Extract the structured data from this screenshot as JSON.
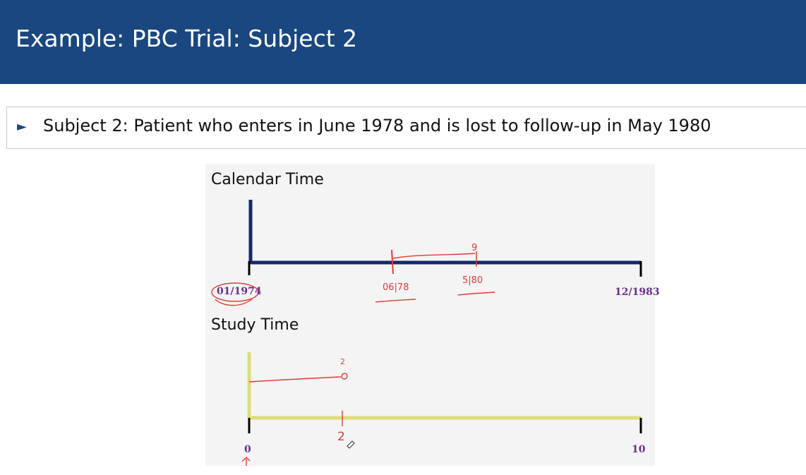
{
  "slide": {
    "title": "Example: PBC Trial: Subject 2",
    "bullet": "Subject 2: Patient who enters in June 1978 and is lost to follow-up in May 1980"
  },
  "diagram": {
    "calendar": {
      "label": "Calendar Time",
      "start_label": "01/1974",
      "end_label": "12/1983",
      "line_color": "#14296b"
    },
    "study": {
      "label": "Study Time",
      "start_label": "0",
      "end_label": "10",
      "line_color": "#dede7a"
    },
    "annotations": {
      "entry_label": "06|78",
      "loss_label": "5|80",
      "calendar_gap": "9",
      "study_followup_top": "2",
      "study_followup_tick": "2",
      "ink_color": "#e03a3a"
    }
  }
}
